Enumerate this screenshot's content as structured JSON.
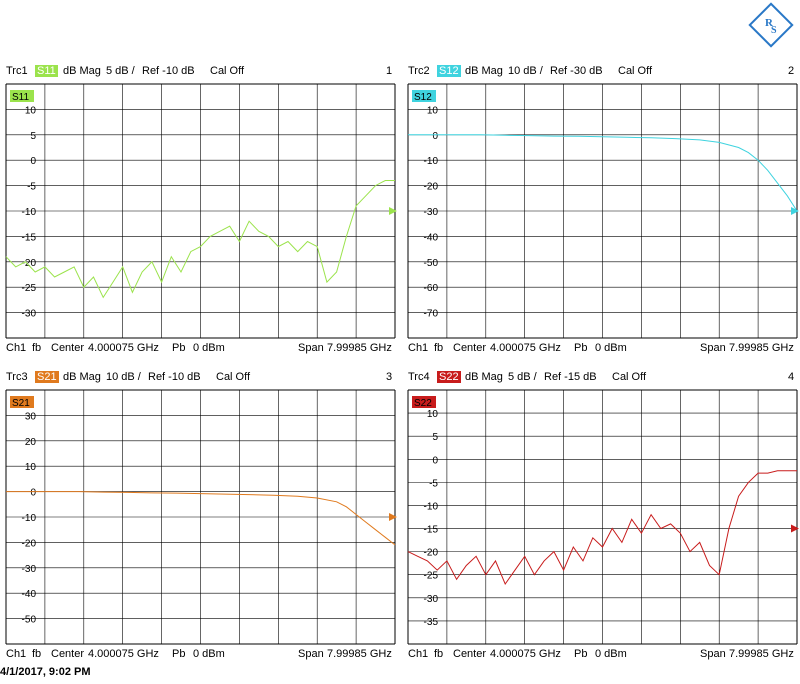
{
  "timestamp": "4/1/2017, 9:02 PM",
  "colors": {
    "S11": "#9be34c",
    "S12": "#3fd3df",
    "S21": "#e07a1e",
    "S22": "#c81c1c"
  },
  "chart_data": [
    {
      "type": "line",
      "trace": "Trc1",
      "param": "S11",
      "format": "dB Mag",
      "scale": "5 dB /",
      "ref": "Ref -10 dB",
      "cal": "Cal Off",
      "number": "1",
      "footer": {
        "ch": "Ch1",
        "fb": "fb",
        "center": "Center",
        "center_val": "4.000075 GHz",
        "pb": "Pb",
        "power": "0 dBm",
        "span": "Span",
        "span_val": "7.99985 GHz"
      },
      "yticks": [
        "10",
        "5",
        "0",
        "-5",
        "-10",
        "-15",
        "-20",
        "-25",
        "-30"
      ],
      "ylim": [
        -35,
        15
      ],
      "ref_level": -10,
      "x_unit": "GHz",
      "xlim": [
        0.0001,
        8.0
      ],
      "x": [
        0.0,
        0.2,
        0.4,
        0.6,
        0.8,
        1.0,
        1.2,
        1.4,
        1.6,
        1.8,
        2.0,
        2.2,
        2.4,
        2.6,
        2.8,
        3.0,
        3.2,
        3.4,
        3.6,
        3.8,
        4.0,
        4.2,
        4.4,
        4.6,
        4.8,
        5.0,
        5.2,
        5.4,
        5.6,
        5.8,
        6.0,
        6.2,
        6.4,
        6.6,
        6.8,
        7.0,
        7.2,
        7.4,
        7.6,
        7.8,
        8.0
      ],
      "y": [
        -19,
        -21,
        -20,
        -22,
        -21,
        -23,
        -22,
        -21,
        -25,
        -23,
        -27,
        -24,
        -21,
        -26,
        -22,
        -20,
        -24,
        -19,
        -22,
        -18,
        -17,
        -15,
        -14,
        -13,
        -16,
        -12,
        -14,
        -15,
        -17,
        -16,
        -18,
        -16,
        -17,
        -24,
        -22,
        -15,
        -9,
        -7,
        -5,
        -4,
        -4
      ]
    },
    {
      "type": "line",
      "trace": "Trc2",
      "param": "S12",
      "format": "dB Mag",
      "scale": "10 dB /",
      "ref": "Ref -30 dB",
      "cal": "Cal Off",
      "number": "2",
      "footer": {
        "ch": "Ch1",
        "fb": "fb",
        "center": "Center",
        "center_val": "4.000075 GHz",
        "pb": "Pb",
        "power": "0 dBm",
        "span": "Span",
        "span_val": "7.99985 GHz"
      },
      "yticks": [
        "10",
        "0",
        "-10",
        "-20",
        "-30",
        "-40",
        "-50",
        "-60",
        "-70"
      ],
      "ylim": [
        -80,
        20
      ],
      "ref_level": -30,
      "x_unit": "GHz",
      "xlim": [
        0.0001,
        8.0
      ],
      "x": [
        0.0,
        0.5,
        1.0,
        1.5,
        2.0,
        2.5,
        3.0,
        3.5,
        4.0,
        4.5,
        5.0,
        5.5,
        6.0,
        6.4,
        6.8,
        7.0,
        7.2,
        7.4,
        7.6,
        7.8,
        8.0
      ],
      "y": [
        0,
        0,
        0,
        0,
        -0.2,
        -0.3,
        -0.5,
        -0.6,
        -0.8,
        -1,
        -1.2,
        -1.5,
        -2,
        -3,
        -5,
        -7,
        -10,
        -14,
        -19,
        -24,
        -30
      ]
    },
    {
      "type": "line",
      "trace": "Trc3",
      "param": "S21",
      "format": "dB Mag",
      "scale": "10 dB /",
      "ref": "Ref -10 dB",
      "cal": "Cal Off",
      "number": "3",
      "footer": {
        "ch": "Ch1",
        "fb": "fb",
        "center": "Center",
        "center_val": "4.000075 GHz",
        "pb": "Pb",
        "power": "0 dBm",
        "span": "Span",
        "span_val": "7.99985 GHz"
      },
      "yticks": [
        "30",
        "20",
        "10",
        "0",
        "-10",
        "-20",
        "-30",
        "-40",
        "-50"
      ],
      "ylim": [
        -60,
        40
      ],
      "ref_level": -10,
      "x_unit": "GHz",
      "xlim": [
        0.0001,
        8.0
      ],
      "x": [
        0.0,
        0.5,
        1.0,
        1.5,
        2.0,
        2.5,
        3.0,
        3.5,
        4.0,
        4.5,
        5.0,
        5.5,
        6.0,
        6.4,
        6.8,
        7.0,
        7.2,
        7.4,
        7.6,
        7.8,
        8.0
      ],
      "y": [
        0,
        0,
        0,
        0,
        -0.2,
        -0.3,
        -0.5,
        -0.6,
        -0.8,
        -1,
        -1.2,
        -1.4,
        -1.8,
        -2.5,
        -4,
        -6,
        -9,
        -12,
        -15,
        -18,
        -21
      ]
    },
    {
      "type": "line",
      "trace": "Trc4",
      "param": "S22",
      "format": "dB Mag",
      "scale": "5 dB /",
      "ref": "Ref -15 dB",
      "cal": "Cal Off",
      "number": "4",
      "footer": {
        "ch": "Ch1",
        "fb": "fb",
        "center": "Center",
        "center_val": "4.000075 GHz",
        "pb": "Pb",
        "power": "0 dBm",
        "span": "Span",
        "span_val": "7.99985 GHz"
      },
      "yticks": [
        "10",
        "5",
        "0",
        "-5",
        "-10",
        "-15",
        "-20",
        "-25",
        "-30",
        "-35"
      ],
      "ylim": [
        -40,
        15
      ],
      "ref_level": -15,
      "x_unit": "GHz",
      "xlim": [
        0.0001,
        8.0
      ],
      "x": [
        0.0,
        0.2,
        0.4,
        0.6,
        0.8,
        1.0,
        1.2,
        1.4,
        1.6,
        1.8,
        2.0,
        2.2,
        2.4,
        2.6,
        2.8,
        3.0,
        3.2,
        3.4,
        3.6,
        3.8,
        4.0,
        4.2,
        4.4,
        4.6,
        4.8,
        5.0,
        5.2,
        5.4,
        5.6,
        5.8,
        6.0,
        6.2,
        6.4,
        6.6,
        6.8,
        7.0,
        7.2,
        7.4,
        7.6,
        7.8,
        8.0
      ],
      "y": [
        -20,
        -21,
        -22,
        -24,
        -22,
        -26,
        -23,
        -21,
        -25,
        -22,
        -27,
        -24,
        -21,
        -25,
        -22,
        -20,
        -24,
        -19,
        -22,
        -17,
        -19,
        -15,
        -18,
        -13,
        -16,
        -12,
        -15,
        -14,
        -16,
        -20,
        -18,
        -23,
        -25,
        -15,
        -8,
        -5,
        -3,
        -3,
        -2.5,
        -2.5,
        -2.5
      ]
    }
  ]
}
